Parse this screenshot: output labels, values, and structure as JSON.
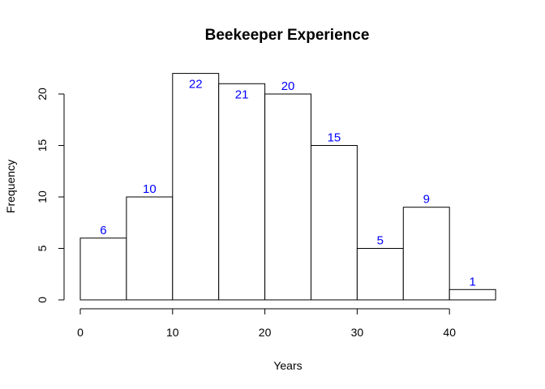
{
  "chart_data": {
    "type": "bar",
    "title": "Beekeeper Experience",
    "xlabel": "Years",
    "ylabel": "Frequency",
    "bins": [
      [
        0,
        5
      ],
      [
        5,
        10
      ],
      [
        10,
        15
      ],
      [
        15,
        20
      ],
      [
        20,
        25
      ],
      [
        25,
        30
      ],
      [
        30,
        35
      ],
      [
        35,
        40
      ],
      [
        40,
        45
      ]
    ],
    "values": [
      6,
      10,
      22,
      21,
      20,
      15,
      5,
      9,
      1
    ],
    "xticks": [
      0,
      10,
      20,
      30,
      40
    ],
    "yticks": [
      0,
      5,
      10,
      15,
      20
    ],
    "xlim": [
      0,
      45
    ],
    "ylim": [
      0,
      22
    ],
    "grid": false,
    "colors": {
      "bar_fill": "#ffffff",
      "bar_stroke": "#000000",
      "label": "#0000ff"
    }
  }
}
